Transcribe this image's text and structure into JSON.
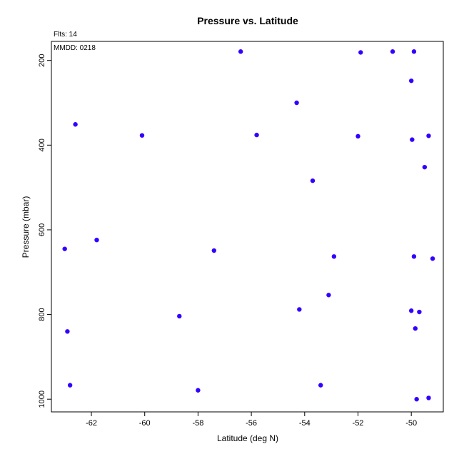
{
  "chart_data": {
    "type": "scatter",
    "title": "Pressure vs. Latitude",
    "xlabel": "Latitude (deg N)",
    "ylabel": "Pressure (mbar)",
    "annotations": [
      "Flts: 14",
      "MMDD: 0218"
    ],
    "xlim": [
      -63.5,
      -48.8
    ],
    "ylim": [
      1030,
      155
    ],
    "y_inverted": true,
    "grid": false,
    "x_ticks": [
      -62,
      -60,
      -58,
      -56,
      -54,
      -52,
      -50
    ],
    "y_ticks": [
      200,
      400,
      600,
      800,
      1000
    ],
    "point_color": "#3300ff",
    "points": [
      {
        "x": -63.0,
        "y": 645
      },
      {
        "x": -62.9,
        "y": 840
      },
      {
        "x": -62.8,
        "y": 967
      },
      {
        "x": -62.6,
        "y": 351
      },
      {
        "x": -61.8,
        "y": 624
      },
      {
        "x": -60.1,
        "y": 377
      },
      {
        "x": -58.7,
        "y": 804
      },
      {
        "x": -58.0,
        "y": 979
      },
      {
        "x": -57.4,
        "y": 649
      },
      {
        "x": -56.4,
        "y": 179
      },
      {
        "x": -55.8,
        "y": 376
      },
      {
        "x": -54.3,
        "y": 300
      },
      {
        "x": -54.2,
        "y": 788
      },
      {
        "x": -53.7,
        "y": 484
      },
      {
        "x": -53.4,
        "y": 967
      },
      {
        "x": -53.1,
        "y": 754
      },
      {
        "x": -52.9,
        "y": 663
      },
      {
        "x": -52.0,
        "y": 379
      },
      {
        "x": -51.9,
        "y": 181
      },
      {
        "x": -50.7,
        "y": 179
      },
      {
        "x": -50.0,
        "y": 248
      },
      {
        "x": -50.0,
        "y": 791
      },
      {
        "x": -49.97,
        "y": 387
      },
      {
        "x": -49.9,
        "y": 663
      },
      {
        "x": -49.9,
        "y": 179
      },
      {
        "x": -49.85,
        "y": 833
      },
      {
        "x": -49.8,
        "y": 1000
      },
      {
        "x": -49.7,
        "y": 794
      },
      {
        "x": -49.5,
        "y": 452
      },
      {
        "x": -49.35,
        "y": 378
      },
      {
        "x": -49.35,
        "y": 997
      },
      {
        "x": -49.2,
        "y": 668
      }
    ]
  }
}
